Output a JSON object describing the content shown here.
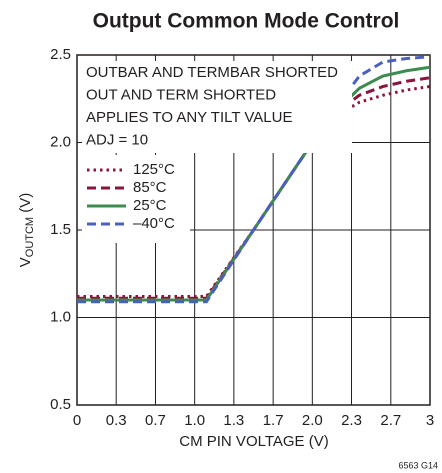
{
  "chart_data": {
    "type": "line",
    "title": "Output Common Mode Control",
    "xlabel": "CM PIN VOLTAGE (V)",
    "ylabel": {
      "main": "V",
      "sub": "OUTCM",
      "unit": " (V)"
    },
    "annotations": [
      "OUTBAR AND TERMBAR SHORTED",
      "OUT AND TERM SHORTED",
      "APPLIES TO ANY TILT VALUE",
      "ADJ = 10"
    ],
    "footnote": "6563 G14",
    "x": [
      0,
      0.5,
      1.0,
      1.1,
      1.5,
      2.0,
      2.2,
      2.4,
      2.6,
      2.8,
      3.0
    ],
    "series": [
      {
        "name": "125°C",
        "color": "#8b1538",
        "dash": "dotted",
        "values": [
          1.12,
          1.12,
          1.12,
          1.12,
          1.5,
          2.0,
          2.15,
          2.23,
          2.27,
          2.3,
          2.32
        ]
      },
      {
        "name": "85°C",
        "color": "#8b1538",
        "dash": "dashed",
        "values": [
          1.11,
          1.11,
          1.11,
          1.11,
          1.5,
          2.0,
          2.17,
          2.27,
          2.32,
          2.35,
          2.37
        ]
      },
      {
        "name": "25°C",
        "color": "#3d8b4f",
        "dash": "solid",
        "values": [
          1.1,
          1.1,
          1.1,
          1.1,
          1.5,
          2.0,
          2.18,
          2.31,
          2.38,
          2.41,
          2.43
        ]
      },
      {
        "name": "–40°C",
        "color": "#4a60bf",
        "dash": "dashed",
        "values": [
          1.09,
          1.09,
          1.09,
          1.09,
          1.5,
          2.0,
          2.2,
          2.38,
          2.46,
          2.48,
          2.49
        ]
      }
    ],
    "xlim": [
      0,
      3
    ],
    "ylim": [
      0.5,
      2.5
    ],
    "xticks": [
      0,
      {
        "value": 0.333,
        "label": "0.3"
      },
      {
        "value": 0.667,
        "label": "0.7"
      },
      {
        "value": 1,
        "label": "1.0"
      },
      {
        "value": 1.333,
        "label": "1.3"
      },
      {
        "value": 1.667,
        "label": "1.7"
      },
      {
        "value": 2,
        "label": "2.0"
      },
      {
        "value": 2.333,
        "label": "2.3"
      },
      {
        "value": 2.667,
        "label": "2.7"
      },
      3
    ],
    "yticks": [
      0.5,
      {
        "value": 1,
        "label": "1.0"
      },
      1.5,
      {
        "value": 2,
        "label": "2.0"
      },
      2.5
    ],
    "grid": true
  }
}
